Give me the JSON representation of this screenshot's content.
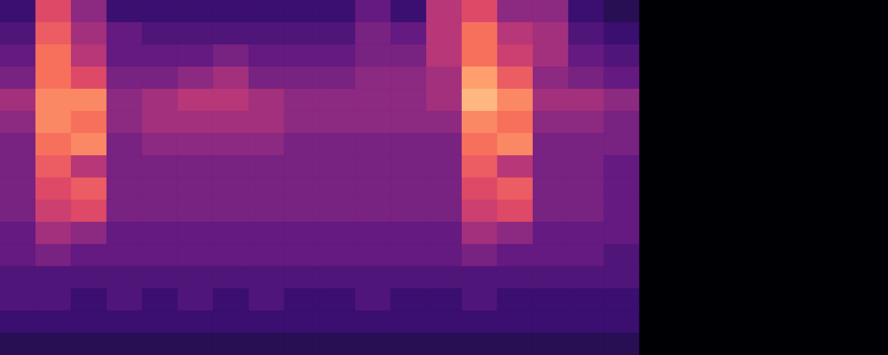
{
  "chart_data": {
    "type": "heatmap",
    "xlim": [
      0,
      25
    ],
    "ylim": [
      0,
      16
    ],
    "zlim": [
      0,
      10
    ],
    "tick_labels": false,
    "grid": false,
    "cells": [
      [
        2,
        6,
        4,
        2,
        2,
        2,
        2,
        2,
        2,
        2,
        3,
        2,
        5,
        6,
        4,
        4,
        2,
        1.5,
        0,
        0,
        0,
        0,
        0,
        0,
        0
      ],
      [
        2.5,
        6.5,
        4.5,
        3,
        2.5,
        2.5,
        2.5,
        2.5,
        2.5,
        2.5,
        3.5,
        3,
        5,
        7,
        5,
        4.5,
        2.5,
        2,
        0,
        0,
        0,
        0,
        0,
        0,
        0
      ],
      [
        3,
        7,
        5,
        3,
        3,
        3,
        3.5,
        3,
        3,
        3,
        3.5,
        3.5,
        5,
        7,
        5.5,
        4.5,
        3,
        2.5,
        0,
        0,
        0,
        0,
        0,
        0,
        0
      ],
      [
        3.5,
        7,
        6,
        3.5,
        3.5,
        4,
        4.5,
        3.5,
        3.5,
        3.5,
        4,
        4,
        4.5,
        8,
        6.5,
        4,
        3.5,
        3,
        0,
        0,
        0,
        0,
        0,
        0,
        0
      ],
      [
        4.5,
        7.5,
        7.5,
        4,
        4.5,
        5,
        5,
        4.5,
        4,
        4,
        4,
        4,
        4.5,
        8.5,
        7.5,
        4.5,
        4.5,
        4,
        0,
        0,
        0,
        0,
        0,
        0,
        0
      ],
      [
        4,
        7.5,
        7,
        4,
        4.5,
        4.5,
        4.5,
        4.5,
        4,
        4,
        4,
        4,
        4,
        7.5,
        7,
        4,
        4,
        3.5,
        0,
        0,
        0,
        0,
        0,
        0,
        0
      ],
      [
        3.5,
        7,
        7.5,
        3.5,
        4,
        4,
        4,
        4,
        3.5,
        3.5,
        3.5,
        3.5,
        3.5,
        7,
        7.5,
        3.5,
        3.5,
        3.5,
        0,
        0,
        0,
        0,
        0,
        0,
        0
      ],
      [
        3.5,
        6.5,
        5,
        3.5,
        3.5,
        3.5,
        3.5,
        3.5,
        3.5,
        3.5,
        3.5,
        3.5,
        3.5,
        6.5,
        5,
        3.5,
        3.5,
        3,
        0,
        0,
        0,
        0,
        0,
        0,
        0
      ],
      [
        3.5,
        6,
        6.5,
        3.5,
        3.5,
        3.5,
        3.5,
        3.5,
        3.5,
        3.5,
        3.5,
        3.5,
        3.5,
        6,
        6.5,
        3.5,
        3.5,
        3,
        0,
        0,
        0,
        0,
        0,
        0,
        0
      ],
      [
        3.5,
        5.5,
        6,
        3.5,
        3.5,
        3.5,
        3.5,
        3.5,
        3.5,
        3.5,
        3.5,
        3.5,
        3.5,
        5.5,
        6,
        3.5,
        3.5,
        3,
        0,
        0,
        0,
        0,
        0,
        0,
        0
      ],
      [
        3,
        4.5,
        4,
        3,
        3,
        3,
        3,
        3,
        3,
        3,
        3,
        3,
        3,
        4.5,
        4,
        3,
        3,
        3,
        0,
        0,
        0,
        0,
        0,
        0,
        0
      ],
      [
        3,
        3.5,
        3,
        3,
        3,
        3,
        3,
        3,
        3,
        3,
        3,
        3,
        3,
        3.5,
        3,
        3,
        3,
        2.5,
        0,
        0,
        0,
        0,
        0,
        0,
        0
      ],
      [
        2.5,
        2.5,
        2.5,
        2.5,
        2.5,
        2.5,
        2.5,
        2.5,
        2.5,
        2.5,
        2.5,
        2.5,
        2.5,
        2.5,
        2.5,
        2.5,
        2.5,
        2.5,
        0,
        0,
        0,
        0,
        0,
        0,
        0
      ],
      [
        2.5,
        2.5,
        2,
        2.5,
        2,
        2.5,
        2,
        2.5,
        2,
        2,
        2.5,
        2,
        2,
        2.5,
        2,
        2,
        2,
        2,
        0,
        0,
        0,
        0,
        0,
        0,
        0
      ],
      [
        2,
        2,
        2,
        2,
        2,
        2,
        2,
        2,
        2,
        2,
        2,
        2,
        2,
        2,
        2,
        2,
        2,
        2,
        0,
        0,
        0,
        0,
        0,
        0,
        0
      ],
      [
        1.5,
        1.5,
        1.5,
        1.5,
        1.5,
        1.5,
        1.5,
        1.5,
        1.5,
        1.5,
        1.5,
        1.5,
        1.5,
        1.5,
        1.5,
        1.5,
        1.5,
        1.5,
        0,
        0,
        0,
        0,
        0,
        0,
        0
      ]
    ]
  }
}
